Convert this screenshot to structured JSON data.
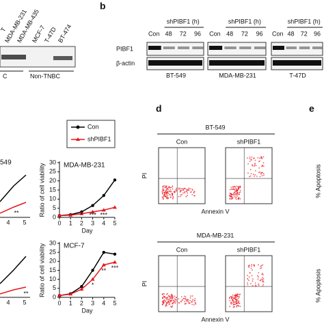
{
  "panel_a": {
    "lanes": [
      "T",
      "MDA-MB-231",
      "MDA-MB-435",
      "MCF-7",
      "T-47D",
      "BT-474"
    ],
    "group_left": "C",
    "group_right": "Non-TNBC"
  },
  "panel_b": {
    "label": "b",
    "treatment": "shPIBF1 (h)",
    "lanes": [
      "Con",
      "48",
      "72",
      "96"
    ],
    "rows": [
      "PIBF1",
      "β-actin"
    ],
    "cells": [
      "BT-549",
      "MDA-MB-231",
      "T-47D"
    ]
  },
  "panel_c": {
    "legend": [
      "Con",
      "shPIBF1"
    ],
    "fragment_title": "549",
    "fragment_ticks": [
      "4",
      "5",
      "4",
      "5"
    ],
    "fragment_stars": [
      "**",
      "**"
    ],
    "charts": [
      {
        "type": "line",
        "title": "MDA-MB-231",
        "y_label": "Ratio of cell viability",
        "x_label": "Day",
        "x": [
          0,
          1,
          2,
          3,
          4,
          5
        ],
        "xlim": [
          0,
          5
        ],
        "xticks": [
          0,
          1,
          2,
          3,
          4,
          5
        ],
        "ylim": [
          0,
          30
        ],
        "yticks": [
          0,
          5,
          10,
          15,
          20,
          25,
          30
        ],
        "series": [
          {
            "name": "Con",
            "color": "#000000",
            "values": [
              1,
              1.5,
              3,
              6.5,
              12,
              20.5
            ]
          },
          {
            "name": "shPIBF1",
            "color": "#e8141b",
            "values": [
              1,
              1.2,
              2,
              3,
              4,
              5.5
            ]
          }
        ],
        "significance": [
          null,
          null,
          "*",
          "***",
          "***",
          null
        ]
      },
      {
        "type": "line",
        "title": "MCF-7",
        "y_label": "Ratio of cell viability",
        "x_label": "Day",
        "x": [
          0,
          1,
          2,
          3,
          4,
          5
        ],
        "xlim": [
          0,
          5
        ],
        "xticks": [
          0,
          1,
          2,
          3,
          4,
          5
        ],
        "ylim": [
          0,
          30
        ],
        "yticks": [
          0,
          5,
          10,
          15,
          20,
          25,
          30
        ],
        "series": [
          {
            "name": "Con",
            "color": "#000000",
            "values": [
              1,
              2,
              6,
              15,
              25,
              24
            ]
          },
          {
            "name": "shPIBF1",
            "color": "#e8141b",
            "values": [
              1,
              1.8,
              4.5,
              10,
              18,
              19.5
            ]
          }
        ],
        "significance": [
          null,
          null,
          null,
          "*",
          "**",
          "***"
        ]
      }
    ]
  },
  "panel_d": {
    "label": "d",
    "blocks": [
      {
        "cell": "BT-549",
        "conditions": [
          "Con",
          "shPIBF1"
        ],
        "y_label": "PI",
        "x_label": "Annexin V"
      },
      {
        "cell": "MDA-MB-231",
        "conditions": [
          "Con",
          "shPIBF1"
        ],
        "y_label": "PI",
        "x_label": "Annexin V"
      }
    ]
  },
  "panel_e": {
    "label": "e",
    "y_labels": [
      "% Apoptosis",
      "% Apoptosis"
    ]
  }
}
